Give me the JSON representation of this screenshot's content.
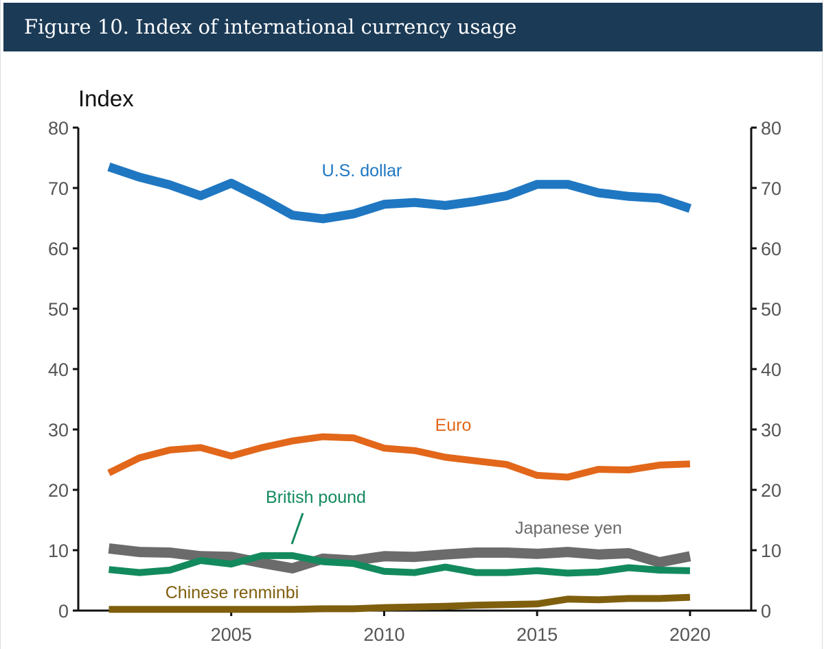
{
  "header": {
    "title": "Figure 10. Index of international currency usage"
  },
  "chart_data": {
    "type": "line",
    "title": "Figure 10. Index of international currency usage",
    "ylabel": "Index",
    "xlabel": "",
    "ylim": [
      0,
      80
    ],
    "xlim": [
      2000,
      2022
    ],
    "y_ticks": [
      0,
      10,
      20,
      30,
      40,
      50,
      60,
      70,
      80
    ],
    "x_ticks": [
      2005,
      2010,
      2015,
      2020
    ],
    "axis_labels_both_sides": true,
    "grid": false,
    "legend": "direct labels on lines",
    "x": [
      2001,
      2002,
      2003,
      2004,
      2005,
      2006,
      2007,
      2008,
      2009,
      2010,
      2011,
      2012,
      2013,
      2014,
      2015,
      2016,
      2017,
      2018,
      2019,
      2020
    ],
    "series": [
      {
        "name": "U.S. dollar",
        "color": "#1f77c2",
        "values": [
          73.5,
          71.8,
          70.5,
          68.7,
          70.8,
          68.3,
          65.5,
          64.9,
          65.7,
          67.3,
          67.6,
          67.1,
          67.8,
          68.7,
          70.6,
          70.6,
          69.2,
          68.6,
          68.3,
          66.6
        ]
      },
      {
        "name": "Euro",
        "color": "#e2671a",
        "values": [
          22.8,
          25.3,
          26.6,
          27.0,
          25.6,
          27.0,
          28.1,
          28.8,
          28.6,
          26.9,
          26.5,
          25.4,
          24.8,
          24.2,
          22.4,
          22.1,
          23.4,
          23.3,
          24.1,
          24.3
        ]
      },
      {
        "name": "Japanese yen",
        "color": "#6b6b6b",
        "values": [
          10.3,
          9.7,
          9.6,
          9.0,
          8.9,
          7.9,
          7.0,
          8.6,
          8.3,
          9.0,
          8.9,
          9.3,
          9.6,
          9.6,
          9.4,
          9.7,
          9.3,
          9.5,
          8.0,
          9.0
        ]
      },
      {
        "name": "British pound",
        "color": "#138a5e",
        "values": [
          6.8,
          6.3,
          6.7,
          8.3,
          7.7,
          9.1,
          9.1,
          8.1,
          7.8,
          6.5,
          6.3,
          7.2,
          6.3,
          6.3,
          6.6,
          6.2,
          6.4,
          7.1,
          6.7,
          6.6
        ]
      },
      {
        "name": "Chinese renminbi",
        "color": "#7f5f0e",
        "values": [
          0.2,
          0.2,
          0.2,
          0.2,
          0.2,
          0.2,
          0.2,
          0.3,
          0.3,
          0.5,
          0.6,
          0.7,
          0.9,
          1.0,
          1.1,
          1.9,
          1.8,
          2.0,
          2.0,
          2.2
        ]
      }
    ]
  }
}
